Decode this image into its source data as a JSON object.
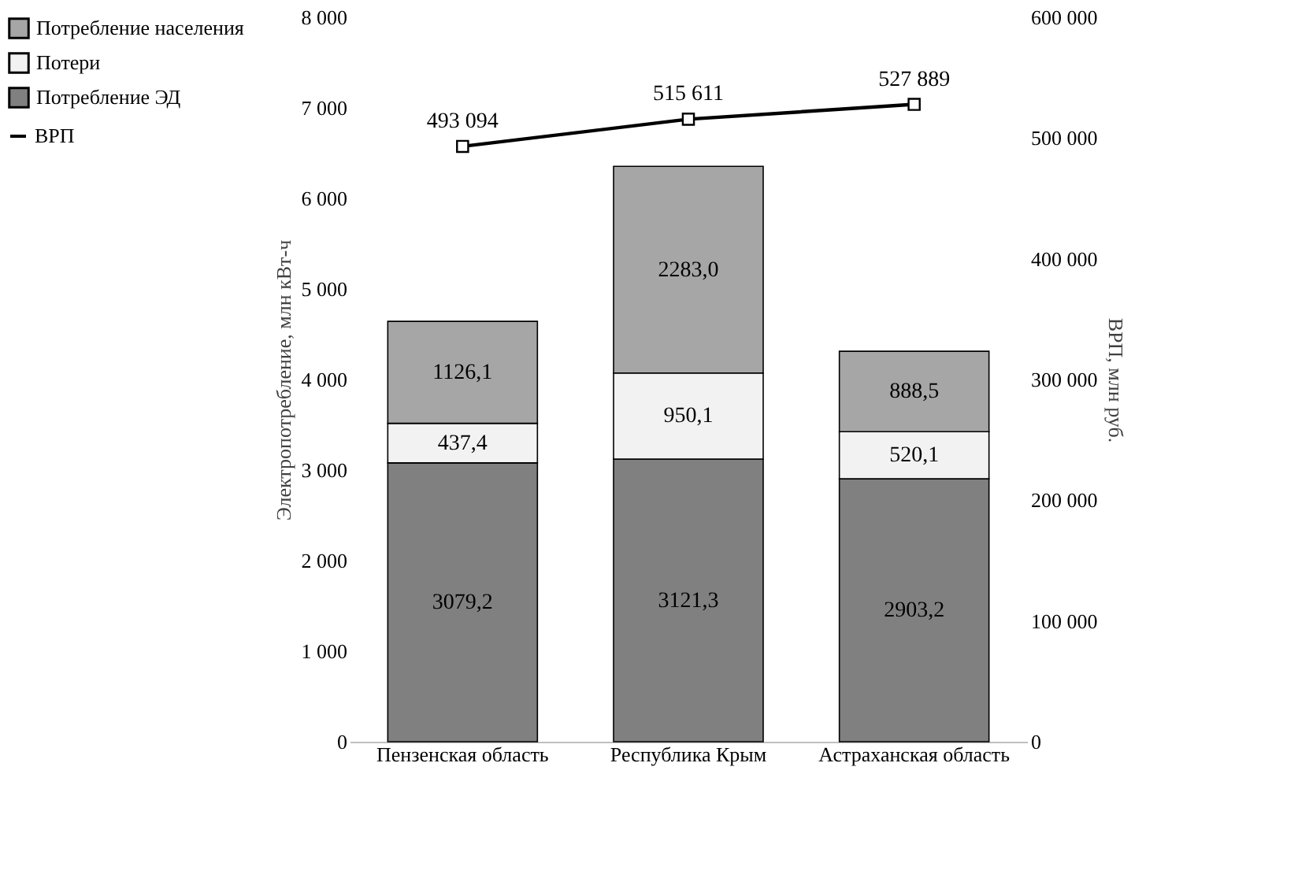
{
  "chart_data": {
    "type": "bar",
    "stacked": true,
    "categories": [
      "Пензенская область",
      "Республика Крым",
      "Астраханская область"
    ],
    "ylabel": "Электропотребление, млн кВт-ч",
    "y2label": "ВРП, млн руб.",
    "ylim": [
      0,
      8000
    ],
    "yticks": [
      0,
      {
        "value": 1000,
        "label": "1 000"
      },
      {
        "value": 2000,
        "label": "2 000"
      },
      {
        "value": 3000,
        "label": "3 000"
      },
      {
        "value": 4000,
        "label": "4 000"
      },
      {
        "value": 5000,
        "label": "5 000"
      },
      {
        "value": 6000,
        "label": "6 000"
      },
      {
        "value": 7000,
        "label": "7 000"
      },
      {
        "value": 8000,
        "label": "8 000"
      }
    ],
    "y2lim": [
      0,
      600000
    ],
    "y2ticks": [
      0,
      {
        "value": 100000,
        "label": "100 000"
      },
      {
        "value": 200000,
        "label": "200 000"
      },
      {
        "value": 300000,
        "label": "300 000"
      },
      {
        "value": 400000,
        "label": "400 000"
      },
      {
        "value": 500000,
        "label": "500 000"
      },
      {
        "value": 600000,
        "label": "600 000"
      }
    ],
    "legend": "left",
    "grid": false,
    "series": [
      {
        "name": "Потребление ЭД",
        "color": "#808080",
        "values": [
          3079.2,
          3121.3,
          2903.2
        ],
        "value_labels": [
          "3079,2",
          "3121,3",
          "2903,2"
        ]
      },
      {
        "name": "Потери",
        "color": "#f2f2f2",
        "values": [
          437.4,
          950.1,
          520.1
        ],
        "value_labels": [
          "437,4",
          "950,1",
          "520,1"
        ]
      },
      {
        "name": "Потребление населения",
        "color": "#a6a6a6",
        "values": [
          1126.1,
          2283.0,
          888.5
        ],
        "value_labels": [
          "1126,1",
          "2283,0",
          "888,5"
        ]
      },
      {
        "name": "ВРП",
        "type": "line",
        "axis": "y2",
        "color": "#000000",
        "marker": "square",
        "values": [
          493094,
          515611,
          527889
        ],
        "value_labels": [
          "493 094",
          "515 611",
          "527 889"
        ]
      }
    ]
  }
}
